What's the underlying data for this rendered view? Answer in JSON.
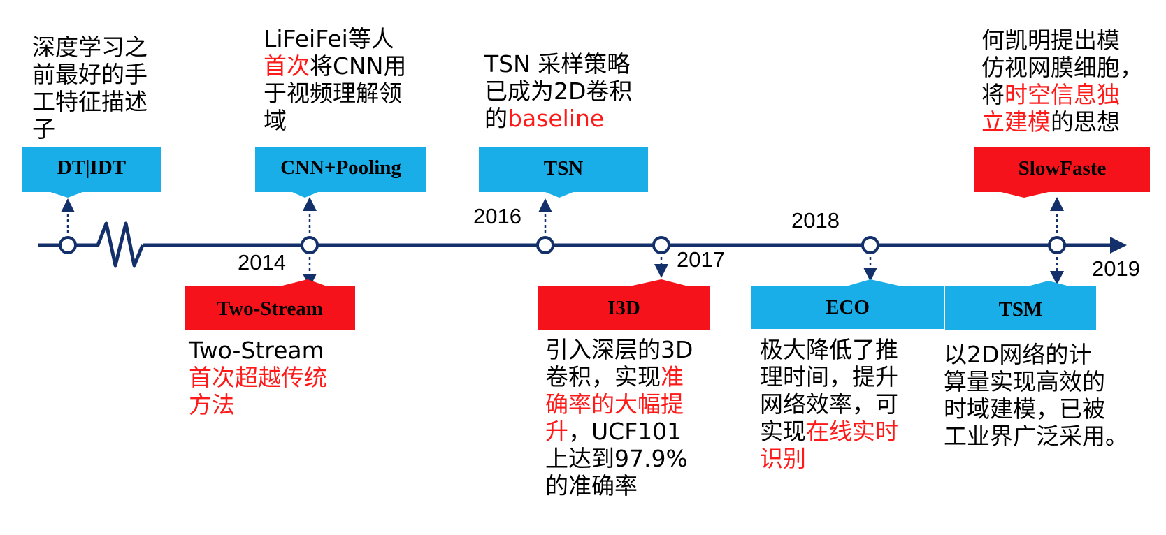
{
  "colors": {
    "axis": "#14306b",
    "blue_box": "#1aaee8",
    "red_box": "#f5121b",
    "highlight_text": "#ff1a1a"
  },
  "years": [
    "2014",
    "2016",
    "2017",
    "2018",
    "2019"
  ],
  "milestones": [
    {
      "id": "dt-idt",
      "label": "DT|IDT",
      "box_color": "blue",
      "desc": [
        [
          "深度学习之",
          ""
        ],
        [
          "前最好的手",
          ""
        ],
        [
          "工特征描述",
          ""
        ],
        [
          "子",
          ""
        ]
      ]
    },
    {
      "id": "cnn-pooling",
      "label": "CNN+Pooling",
      "box_color": "blue",
      "desc": [
        [
          "LiFeiFei等人",
          ""
        ],
        [
          "",
          "首次"
        ],
        [
          "将CNN用",
          ""
        ],
        [
          "于视频理解领",
          ""
        ],
        [
          "域",
          ""
        ]
      ]
    },
    {
      "id": "tsn",
      "label": "TSN",
      "box_color": "blue",
      "desc": [
        [
          "TSN 采样策略",
          ""
        ],
        [
          "已成为2D卷积",
          ""
        ],
        [
          "的",
          "baseline"
        ]
      ]
    },
    {
      "id": "slowfast",
      "label": "SlowFaste",
      "box_color": "red",
      "desc": [
        [
          "何凯明提出模",
          ""
        ],
        [
          "仿视网膜细胞，",
          ""
        ],
        [
          "将",
          "时空信息独"
        ],
        [
          "",
          "立建模"
        ],
        [
          "的思想",
          ""
        ]
      ]
    },
    {
      "id": "two-stream",
      "label": "Two-Stream",
      "box_color": "red",
      "desc": [
        [
          "Two-Stream",
          ""
        ],
        [
          "",
          "首次超越传统"
        ],
        [
          "",
          "方法"
        ]
      ]
    },
    {
      "id": "i3d",
      "label": "I3D",
      "box_color": "red",
      "desc": [
        [
          "引入深层的3D",
          ""
        ],
        [
          "卷积，实现",
          "准"
        ],
        [
          "",
          "确率的大幅提"
        ],
        [
          "",
          "升"
        ],
        [
          "，UCF101",
          ""
        ],
        [
          "上达到97.9%",
          ""
        ],
        [
          "的准确率",
          ""
        ]
      ]
    },
    {
      "id": "eco",
      "label": "ECO",
      "box_color": "blue",
      "desc": [
        [
          "极大降低了推",
          ""
        ],
        [
          "理时间，提升",
          ""
        ],
        [
          "网络效率，可",
          ""
        ],
        [
          "实现",
          "在线实时"
        ],
        [
          "",
          "识别"
        ]
      ]
    },
    {
      "id": "tsm",
      "label": "TSM",
      "box_color": "blue",
      "desc": [
        [
          "以2D网络的计",
          ""
        ],
        [
          "算量实现高效的",
          ""
        ],
        [
          "时域建模，已被",
          ""
        ],
        [
          "工业界广泛采用。",
          ""
        ]
      ]
    }
  ]
}
